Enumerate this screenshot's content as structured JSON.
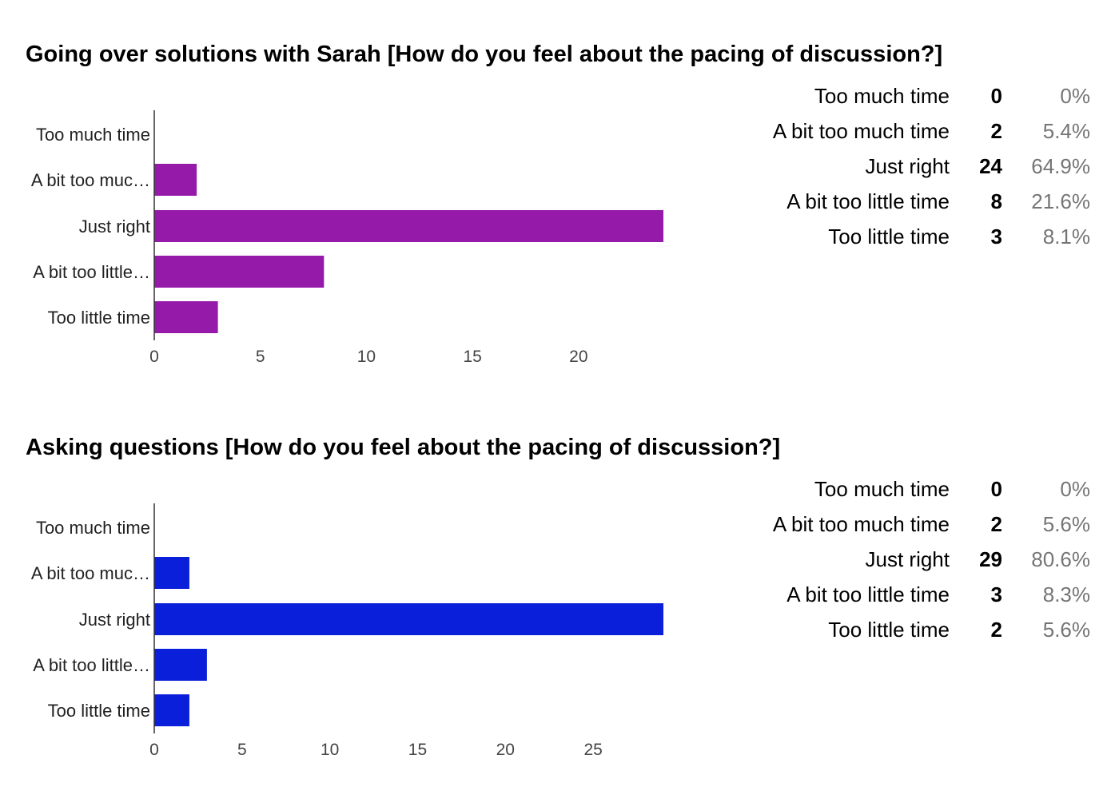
{
  "chart_data": [
    {
      "type": "bar",
      "orientation": "horizontal",
      "title": "Going over solutions with Sarah [How do you feel about the pacing of discussion?]",
      "categories": [
        "Too much time",
        "A bit too muc…",
        "Just right",
        "A bit too little…",
        "Too little time"
      ],
      "values": [
        0,
        2,
        24,
        8,
        3
      ],
      "xlim": [
        0,
        24
      ],
      "x_ticks": [
        0,
        5,
        10,
        15,
        20
      ],
      "grid": false,
      "color": "#961aaa",
      "summary": [
        {
          "label": "Too much time",
          "count": "0",
          "percent": "0%"
        },
        {
          "label": "A bit too much time",
          "count": "2",
          "percent": "5.4%"
        },
        {
          "label": "Just right",
          "count": "24",
          "percent": "64.9%"
        },
        {
          "label": "A bit too little time",
          "count": "8",
          "percent": "21.6%"
        },
        {
          "label": "Too little time",
          "count": "3",
          "percent": "8.1%"
        }
      ]
    },
    {
      "type": "bar",
      "orientation": "horizontal",
      "title": "Asking questions [How do you feel about the pacing of discussion?]",
      "categories": [
        "Too much time",
        "A bit too muc…",
        "Just right",
        "A bit too little…",
        "Too little time"
      ],
      "values": [
        0,
        2,
        29,
        3,
        2
      ],
      "xlim": [
        0,
        29
      ],
      "x_ticks": [
        0,
        5,
        10,
        15,
        20,
        25
      ],
      "grid": false,
      "color": "#0a1fd9",
      "summary": [
        {
          "label": "Too much time",
          "count": "0",
          "percent": "0%"
        },
        {
          "label": "A bit too much time",
          "count": "2",
          "percent": "5.6%"
        },
        {
          "label": "Just right",
          "count": "29",
          "percent": "80.6%"
        },
        {
          "label": "A bit too little time",
          "count": "3",
          "percent": "8.3%"
        },
        {
          "label": "Too little time",
          "count": "2",
          "percent": "5.6%"
        }
      ]
    }
  ]
}
